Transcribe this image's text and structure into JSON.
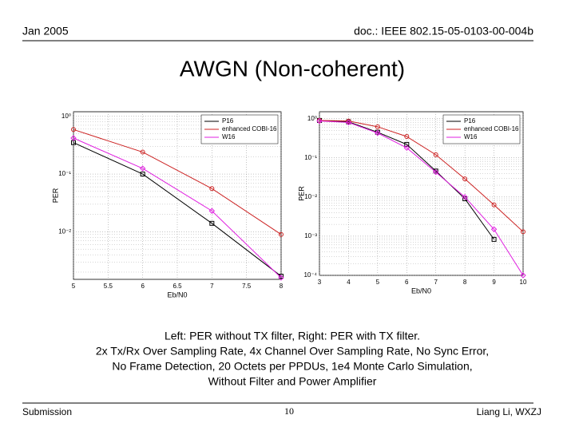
{
  "header": {
    "date": "Jan 2005",
    "doc": "doc.: IEEE 802.15-05-0103-00-004b"
  },
  "title": "AWGN (Non-coherent)",
  "caption": [
    "Left: PER without TX filter, Right: PER with TX filter.",
    "2x Tx/Rx Over Sampling Rate, 4x Channel Over Sampling Rate, No Sync Error,",
    "No Frame Detection, 20 Octets per PPDUs, 1e4 Monte Carlo Simulation,",
    "Without Filter and Power Amplifier"
  ],
  "footer": {
    "left": "Submission",
    "page": "10",
    "right": "Liang Li, WXZJ"
  },
  "chart_data": [
    {
      "type": "line",
      "x_label": "Eb/N0",
      "y_label": "PER",
      "log_y": true,
      "grid": true,
      "legend": "upper right",
      "x": [
        5,
        6,
        7,
        8
      ],
      "xlim": [
        5,
        8
      ],
      "xticks": [
        5,
        5.5,
        6,
        6.5,
        7,
        7.5,
        8
      ],
      "ylim": [
        0.0015,
        1.2
      ],
      "yticks": [
        {
          "value": 1,
          "label": "10⁰"
        },
        {
          "value": 0.1,
          "label": "10⁻¹"
        },
        {
          "value": 0.01,
          "label": "10⁻²"
        }
      ],
      "series": [
        {
          "name": "P16",
          "color": "#000000",
          "marker": "square",
          "values": [
            0.35,
            0.1,
            0.014,
            0.0017
          ]
        },
        {
          "name": "enhanced COBI-16",
          "color": "#cc2222",
          "marker": "circle",
          "values": [
            0.59,
            0.24,
            0.056,
            0.009
          ]
        },
        {
          "name": "W16",
          "color": "#e020e0",
          "marker": "diamond",
          "values": [
            0.42,
            0.125,
            0.023,
            0.0016
          ]
        }
      ]
    },
    {
      "type": "line",
      "x_label": "Eb/N0",
      "y_label": "PER",
      "log_y": true,
      "grid": true,
      "legend": "upper right",
      "x": [
        3,
        4,
        5,
        6,
        7,
        8,
        9,
        10
      ],
      "xlim": [
        3,
        10
      ],
      "xticks": [
        3,
        4,
        5,
        6,
        7,
        8,
        9,
        10
      ],
      "ylim": [
        0.0001,
        1.5
      ],
      "yticks": [
        {
          "value": 1,
          "label": "10⁰"
        },
        {
          "value": 0.1,
          "label": "10⁻¹"
        },
        {
          "value": 0.01,
          "label": "10⁻²"
        },
        {
          "value": 0.001,
          "label": "10⁻³"
        },
        {
          "value": 0.0001,
          "label": "10⁻⁴"
        }
      ],
      "series": [
        {
          "name": "P16",
          "color": "#000000",
          "marker": "square",
          "values": [
            0.9,
            0.83,
            0.45,
            0.22,
            0.046,
            0.009,
            0.00083,
            null
          ]
        },
        {
          "name": "enhanced COBI-16",
          "color": "#cc2222",
          "marker": "circle",
          "values": [
            0.9,
            0.87,
            0.62,
            0.35,
            0.12,
            0.029,
            0.0063,
            0.0013
          ]
        },
        {
          "name": "W16",
          "color": "#e020e0",
          "marker": "diamond",
          "values": [
            0.87,
            0.8,
            0.43,
            0.18,
            0.043,
            0.01,
            0.0015,
            0.0001
          ]
        }
      ]
    }
  ]
}
